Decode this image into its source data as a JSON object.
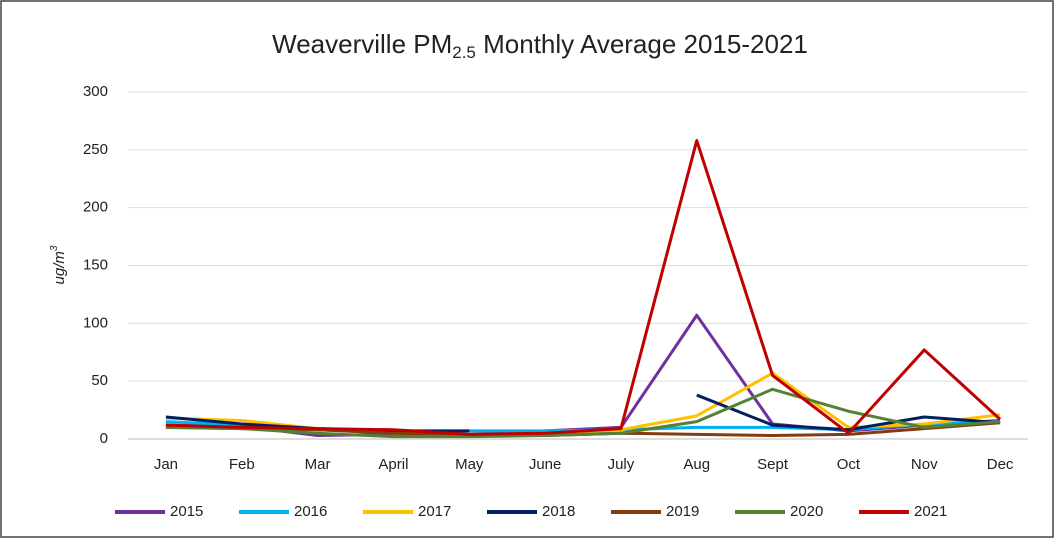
{
  "chart_data": {
    "type": "line",
    "title": [
      "Weaverville PM",
      "2.5",
      " Monthly Average 2015-2021"
    ],
    "y_label": [
      "ug/m",
      "3"
    ],
    "categories": [
      "Jan",
      "Feb",
      "Mar",
      "April",
      "May",
      "June",
      "July",
      "Aug",
      "Sept",
      "Oct",
      "Nov",
      "Dec"
    ],
    "series": [
      {
        "name": "2015",
        "color": "#7030a0",
        "values": [
          12,
          11,
          3,
          4,
          4,
          7,
          10,
          107,
          13,
          7,
          12,
          16
        ]
      },
      {
        "name": "2016",
        "color": "#00b0f0",
        "values": [
          15,
          12,
          8,
          6,
          7,
          7,
          8,
          10,
          10,
          8,
          13,
          15
        ]
      },
      {
        "name": "2017",
        "color": "#ffc000",
        "values": [
          18,
          16,
          9,
          5,
          4,
          4,
          8,
          20,
          57,
          10,
          13,
          21
        ]
      },
      {
        "name": "2018",
        "color": "#002060",
        "values": [
          19,
          13,
          9,
          7,
          7,
          null,
          null,
          38,
          12,
          8,
          19,
          14
        ]
      },
      {
        "name": "2019",
        "color": "#843c0c",
        "values": [
          10,
          9,
          8,
          5,
          3,
          3,
          5,
          4,
          3,
          4,
          9,
          14
        ]
      },
      {
        "name": "2020",
        "color": "#548235",
        "values": [
          10,
          9,
          5,
          2,
          2,
          3,
          5,
          15,
          43,
          24,
          10,
          15
        ]
      },
      {
        "name": "2021",
        "color": "#c00000",
        "values": [
          12,
          10,
          9,
          8,
          4,
          5,
          9,
          258,
          55,
          5,
          77,
          17
        ]
      }
    ],
    "ylim": [
      0,
      300
    ],
    "yticks": [
      0,
      50,
      100,
      150,
      200,
      250,
      300
    ],
    "grid": true,
    "legend": "bottom"
  }
}
